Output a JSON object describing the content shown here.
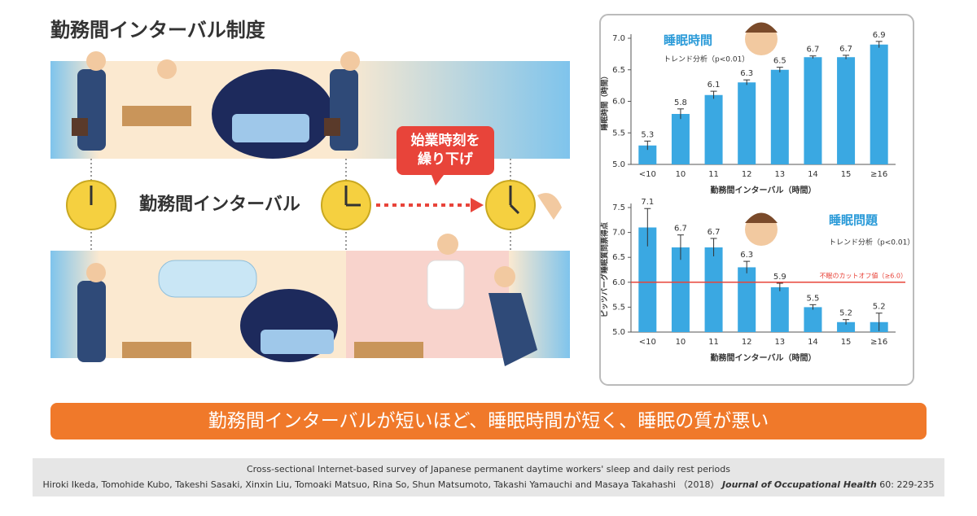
{
  "title": "勤務間インターバル制度",
  "interval_label": "勤務間インターバル",
  "callout": [
    "始業時刻を",
    "繰り下げ"
  ],
  "banner": "勤務間インターバルが短いほど、睡眠時間が短く、睡眠の質が悪い",
  "citation": {
    "line1": "Cross-sectional Internet-based survey of Japanese permanent daytime workers' sleep and daily rest periods",
    "authors": "Hiroki Ikeda, Tomohide Kubo, Takeshi Sasaki, Xinxin Liu, Tomoaki Matsuo, Rina So, Shun Matsumoto, Takashi Yamauchi and Masaya Takahashi （2018）",
    "journal": "Journal of Occupational Health",
    "volume": "60: 229-235"
  },
  "chart_data": [
    {
      "type": "bar",
      "title": "睡眠時間",
      "subtitle": "トレンド分析（p<0.01）",
      "ylabel": "睡眠時間（時間）",
      "xlabel": "勤務間インターバル（時間）",
      "categories": [
        "<10",
        "10",
        "11",
        "12",
        "13",
        "14",
        "15",
        "≥16"
      ],
      "values": [
        5.3,
        5.8,
        6.1,
        6.3,
        6.5,
        6.7,
        6.7,
        6.9
      ],
      "errors": [
        0.07,
        0.08,
        0.06,
        0.04,
        0.04,
        0.02,
        0.03,
        0.05
      ],
      "color": "#3aa8e2",
      "ylim": [
        5.0,
        7.0
      ],
      "yticks": [
        {
          "value": 5,
          "label": "5.0"
        },
        5.5,
        {
          "value": 6,
          "label": "6.0"
        },
        6.5,
        {
          "value": 7,
          "label": "7.0"
        }
      ]
    },
    {
      "type": "bar",
      "title": "睡眠問題",
      "subtitle": "トレンド分析（p<0.01）",
      "ylabel": "ピッツバーグ睡眠質問票得点",
      "xlabel": "勤務間インターバル（時間）",
      "categories": [
        "<10",
        "10",
        "11",
        "12",
        "13",
        "14",
        "15",
        "≥16"
      ],
      "values": [
        7.1,
        6.7,
        6.7,
        6.3,
        5.9,
        5.5,
        5.2,
        5.2
      ],
      "errors": [
        0.38,
        0.25,
        0.18,
        0.12,
        0.08,
        0.05,
        0.05,
        0.18
      ],
      "color": "#3aa8e2",
      "ylim": [
        5.0,
        7.5
      ],
      "yticks": [
        {
          "value": 5,
          "label": "5.0"
        },
        5.5,
        {
          "value": 6,
          "label": "6.0"
        },
        6.5,
        {
          "value": 7,
          "label": "7.0"
        },
        7.5
      ],
      "reference": {
        "value": 6.0,
        "label": "不眠のカットオフ値（≥6.0）",
        "color": "#e8443a"
      }
    }
  ]
}
